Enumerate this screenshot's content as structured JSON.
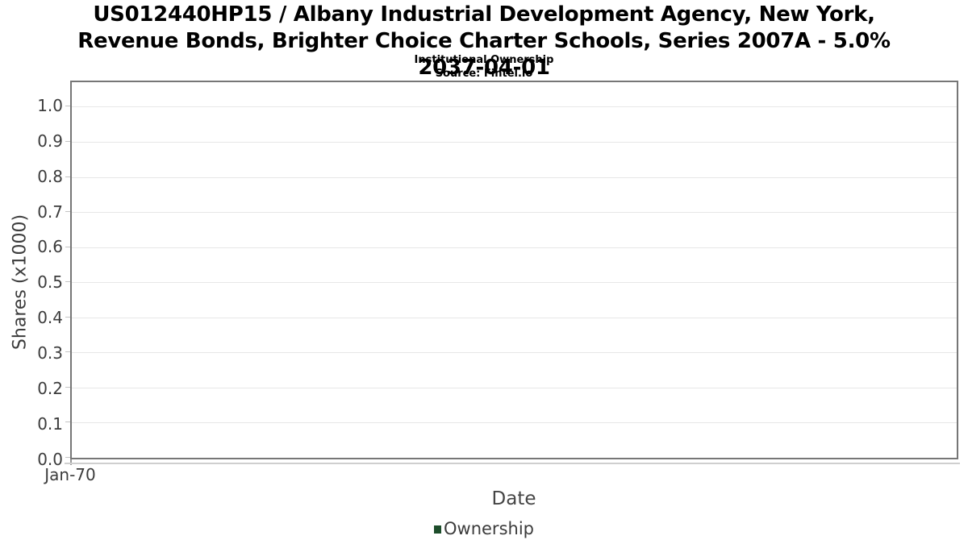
{
  "header": {
    "title": "US012440HP15 / Albany Industrial Development Agency, New York, Revenue Bonds, Brighter Choice Charter Schools, Series 2007A - 5.0% 2037-04-01",
    "subtitle": "Institutional Ownership",
    "source": "Source: Fintel.io"
  },
  "chart_data": {
    "type": "line",
    "title": "US012440HP15 / Albany Industrial Development Agency, New York, Revenue Bonds, Brighter Choice Charter Schools, Series 2007A - 5.0% 2037-04-01",
    "subtitle": "Institutional Ownership",
    "source": "Source: Fintel.io",
    "xlabel": "Date",
    "ylabel": "Shares (x1000)",
    "x_ticks": [
      "Jan-70"
    ],
    "y_ticks": [
      0.0,
      0.1,
      0.2,
      0.3,
      0.4,
      0.5,
      0.6,
      0.7,
      0.8,
      0.9,
      1.0
    ],
    "ylim": [
      0,
      1.07
    ],
    "grid": true,
    "legend_position": "bottom",
    "series": [
      {
        "name": "Ownership",
        "color": "#1d4d2b",
        "x": [],
        "values": []
      }
    ]
  },
  "colors": {
    "legend_green": "#1d4d2b",
    "axis_text": "#3c3c3c",
    "gridline": "#e7e7e7",
    "plot_border": "#767676",
    "background": "#ffffff"
  }
}
